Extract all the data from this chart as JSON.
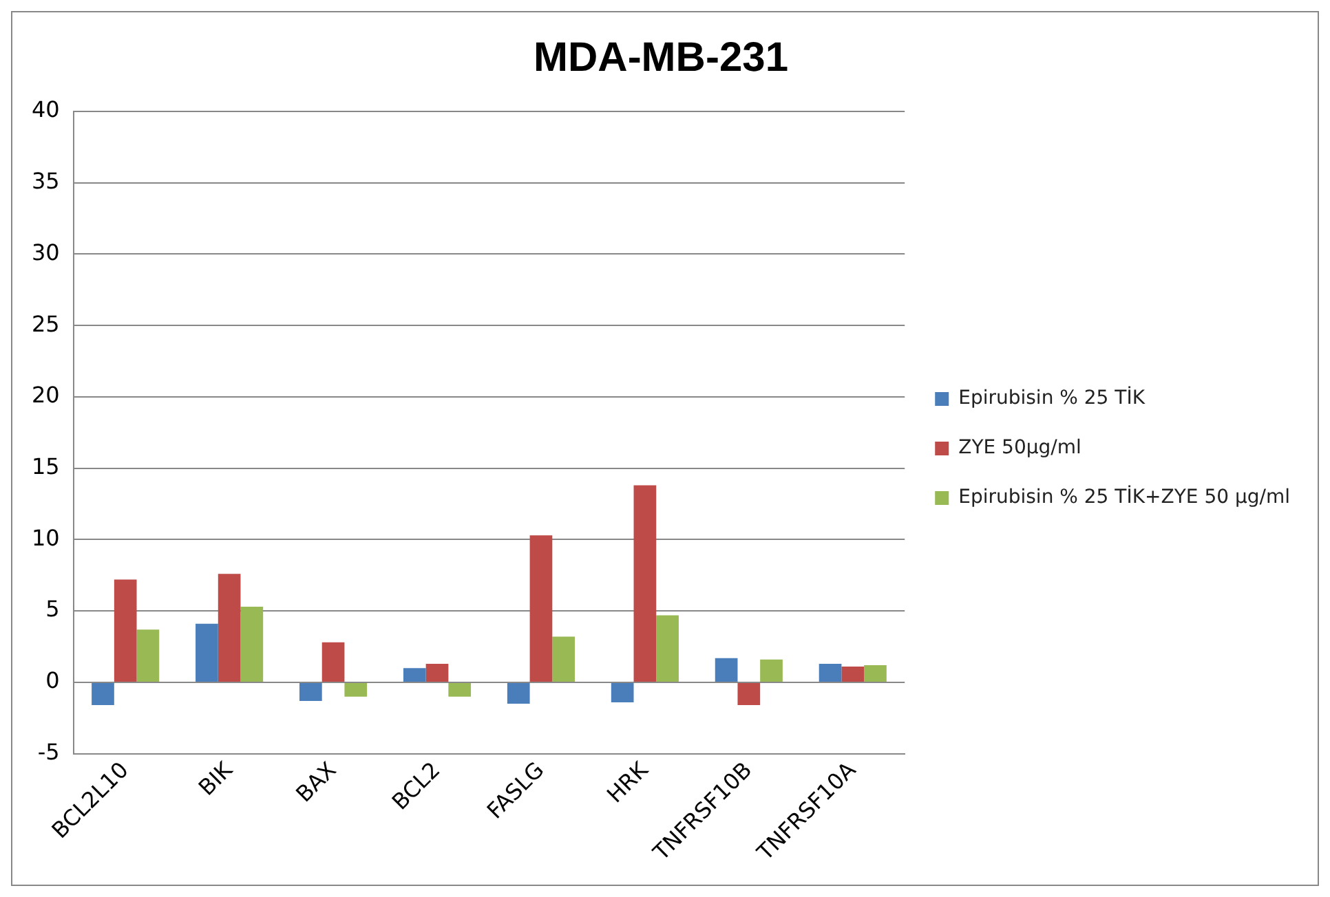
{
  "chart_data": {
    "type": "bar",
    "title": "MDA-MB-231",
    "categories": [
      "BCL2L10",
      "BIK",
      "BAX",
      "BCL2",
      "FASLG",
      "HRK",
      "TNFRSF10B",
      "TNFRSF10A"
    ],
    "series": [
      {
        "name": "Epirubisin % 25 TİK",
        "color": "#4a7ebb",
        "values": [
          -1.6,
          4.1,
          -1.3,
          1.0,
          -1.5,
          -1.4,
          1.7,
          1.3
        ]
      },
      {
        "name": "ZYE 50µg/ml",
        "color": "#be4b48",
        "values": [
          7.2,
          7.6,
          2.8,
          1.3,
          10.3,
          13.8,
          -1.6,
          1.1
        ]
      },
      {
        "name": "Epirubisin % 25 TİK+ZYE 50 µg/ml",
        "color": "#98b954",
        "values": [
          3.7,
          5.3,
          -1.0,
          -1.0,
          3.2,
          4.7,
          1.6,
          1.2
        ]
      }
    ],
    "ylim": [
      -5,
      40
    ],
    "yticks": [
      -5,
      0,
      5,
      10,
      15,
      20,
      25,
      30,
      35,
      40
    ],
    "grid": "y",
    "legend": "right"
  }
}
